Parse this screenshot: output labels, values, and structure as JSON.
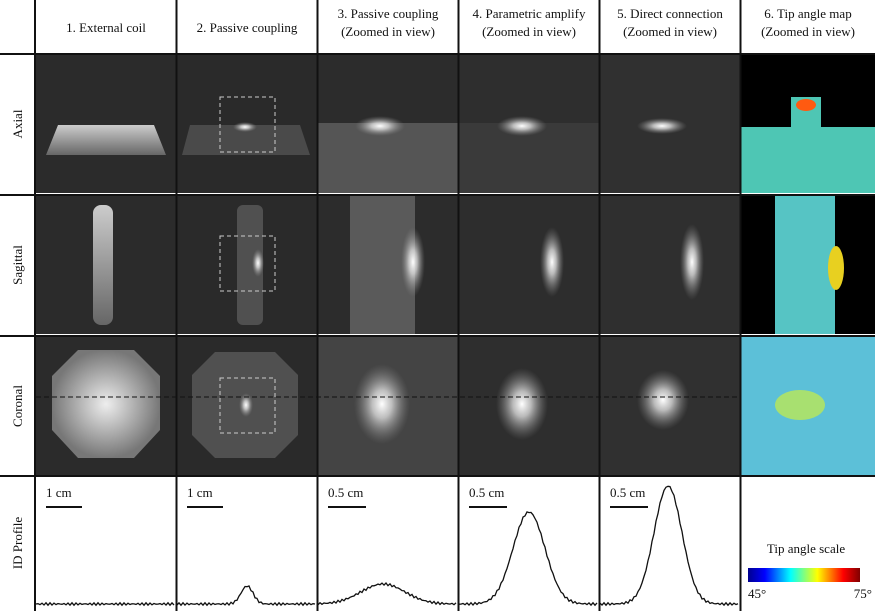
{
  "columns": [
    [
      "1. External coil"
    ],
    [
      "2. Passive coupling"
    ],
    [
      "3. Passive coupling",
      "(Zoomed in view)"
    ],
    [
      "4. Parametric amplify",
      "(Zoomed in view)"
    ],
    [
      "5. Direct connection",
      "(Zoomed in view)"
    ],
    [
      "6. Tip angle map",
      "(Zoomed in view)"
    ]
  ],
  "rows": [
    "Axial",
    "Sagittal",
    "Coronal",
    "ID Profile"
  ],
  "scale_bars": [
    "1 cm",
    "1 cm",
    "0.5 cm",
    "0.5 cm",
    "0.5 cm"
  ],
  "tip_angle_scale": {
    "title": "Tip angle scale",
    "min": "45°",
    "max": "75°"
  }
}
